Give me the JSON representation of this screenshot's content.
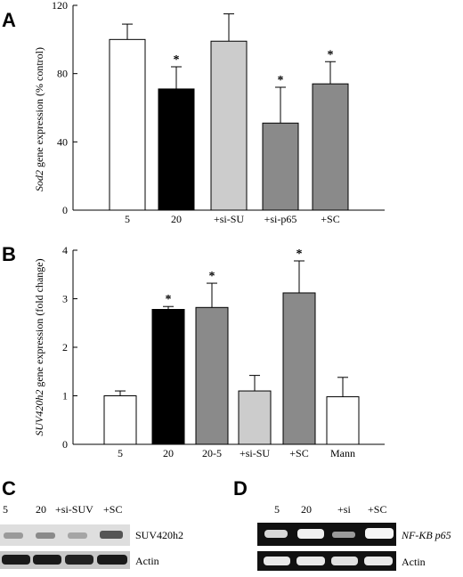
{
  "panels": {
    "a": "A",
    "b": "B",
    "c": "C",
    "d": "D"
  },
  "colors": {
    "white": "#ffffff",
    "black": "#000000",
    "light_gray": "#cccccc",
    "dark_gray": "#8a8a8a"
  },
  "chart_data": [
    {
      "type": "bar",
      "panel": "A",
      "ylabel_italic": "Sod2",
      "ylabel_rest": " gene expression (% control)",
      "xlabel": "",
      "ylim": [
        0,
        120
      ],
      "yticks": [
        0,
        40,
        80,
        120
      ],
      "categories": [
        "5",
        "20",
        "+si-SU",
        "+si-p65",
        "+SC"
      ],
      "values": [
        100,
        71,
        99,
        51,
        74
      ],
      "errors": [
        9,
        13,
        16,
        21,
        13
      ],
      "significant": [
        false,
        true,
        false,
        true,
        true
      ],
      "significance_marker": "*",
      "fills": [
        "white",
        "black",
        "light_gray",
        "dark_gray",
        "dark_gray"
      ]
    },
    {
      "type": "bar",
      "panel": "B",
      "ylabel_italic": "SUV420h2",
      "ylabel_rest": " gene expression (fold change)",
      "xlabel": "",
      "ylim": [
        0,
        4
      ],
      "yticks": [
        0,
        1,
        2,
        3,
        4
      ],
      "categories": [
        "5",
        "20",
        "20-5",
        "+si-SU",
        "+SC",
        "Mann"
      ],
      "values": [
        1.0,
        2.78,
        2.82,
        1.1,
        3.12,
        0.98
      ],
      "errors": [
        0.1,
        0.06,
        0.5,
        0.32,
        0.66,
        0.4
      ],
      "significant": [
        false,
        true,
        true,
        false,
        true,
        false
      ],
      "significance_marker": "*",
      "fills": [
        "white",
        "black",
        "dark_gray",
        "light_gray",
        "dark_gray",
        "white"
      ]
    }
  ],
  "blot_c": {
    "lanes": [
      "5",
      "20",
      "+si-SUV",
      "+SC"
    ],
    "rows": [
      "SUV420h2",
      "Actin"
    ]
  },
  "blot_d": {
    "lanes": [
      "5",
      "20",
      "+si",
      "+SC"
    ],
    "rows": [
      "NF-KB p65",
      "Actin"
    ]
  }
}
